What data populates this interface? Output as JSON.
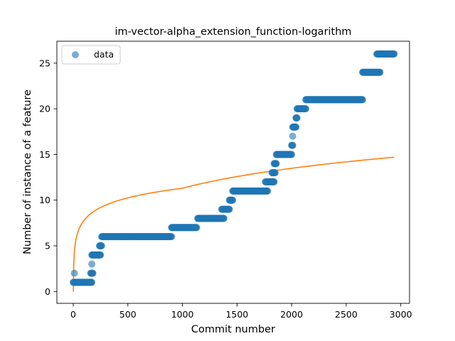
{
  "chart_data": {
    "type": "scatter",
    "title": "im-vector-alpha_extension_function-logarithm",
    "xlabel": "Commit number",
    "ylabel": "Number of instance of a feature",
    "xlim": [
      -150,
      3080
    ],
    "ylim": [
      -1.3,
      27.4
    ],
    "xticks": [
      0,
      500,
      1000,
      1500,
      2000,
      2500,
      3000
    ],
    "yticks": [
      0,
      5,
      10,
      15,
      20,
      25
    ],
    "grid": false,
    "legend": {
      "placement": "top-left",
      "entries": [
        "data"
      ]
    },
    "colors": {
      "data": "#1f77b4",
      "fit": "#ff7f0e"
    },
    "series": [
      {
        "name": "data",
        "kind": "scatter",
        "segments": [
          {
            "x": [
              0,
              170
            ],
            "y": 1
          },
          {
            "x": [
              10,
              10
            ],
            "y": 2
          },
          {
            "x": [
              160,
              180
            ],
            "y": 2
          },
          {
            "x": [
              170,
              170
            ],
            "y": 3
          },
          {
            "x": [
              170,
              250
            ],
            "y": 4
          },
          {
            "x": [
              240,
              260
            ],
            "y": 5
          },
          {
            "x": [
              260,
              900
            ],
            "y": 6
          },
          {
            "x": [
              900,
              1130
            ],
            "y": 7
          },
          {
            "x": [
              1140,
              1380
            ],
            "y": 8
          },
          {
            "x": [
              1360,
              1430
            ],
            "y": 9
          },
          {
            "x": [
              1430,
              1460
            ],
            "y": 10
          },
          {
            "x": [
              1460,
              1780
            ],
            "y": 11
          },
          {
            "x": [
              1760,
              1840
            ],
            "y": 12
          },
          {
            "x": [
              1820,
              1850
            ],
            "y": 13
          },
          {
            "x": [
              1840,
              1860
            ],
            "y": 14
          },
          {
            "x": [
              1860,
              2000
            ],
            "y": 15
          },
          {
            "x": [
              2000,
              2010
            ],
            "y": 16
          },
          {
            "x": [
              2010,
              2010
            ],
            "y": 17
          },
          {
            "x": [
              2010,
              2040
            ],
            "y": 18
          },
          {
            "x": [
              2040,
              2050
            ],
            "y": 19
          },
          {
            "x": [
              2050,
              2130
            ],
            "y": 20
          },
          {
            "x": [
              2130,
              2650
            ],
            "y": 21
          },
          {
            "x": [
              2650,
              2810
            ],
            "y": 24
          },
          {
            "x": [
              2780,
              2940
            ],
            "y": 26
          }
        ]
      },
      {
        "kind": "line",
        "function": "logarithmic",
        "x_range": [
          0,
          2940
        ],
        "y_anchor_points": [
          [
            1,
            0
          ],
          [
            10,
            4.3
          ],
          [
            100,
            7.8
          ],
          [
            1000,
            11.3
          ],
          [
            2940,
            14.7
          ]
        ]
      }
    ]
  }
}
